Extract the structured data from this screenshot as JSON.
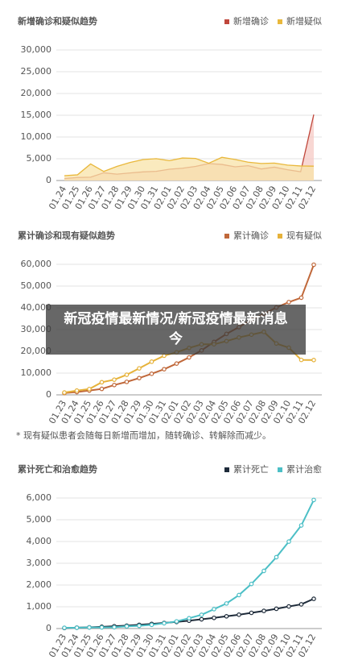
{
  "banner": "新冠疫情最新情况/新冠疫情最新消息今",
  "chart_data": [
    {
      "type": "area",
      "title": "新增确诊和疑似趋势",
      "legend": "top-right",
      "grid": true,
      "categories": [
        "01.24",
        "01.25",
        "01.26",
        "01.27",
        "01.28",
        "01.29",
        "01.30",
        "01.31",
        "02.01",
        "02.02",
        "02.03",
        "02.04",
        "02.05",
        "02.06",
        "02.07",
        "02.08",
        "02.09",
        "02.10",
        "02.11",
        "02.12"
      ],
      "series": [
        {
          "name": "新增确诊",
          "color": "#c0473c",
          "fill": "#f6c9c4",
          "values": [
            444,
            688,
            769,
            1771,
            1459,
            1737,
            1982,
            2102,
            2590,
            2829,
            3235,
            3887,
            3694,
            3143,
            3399,
            2656,
            3062,
            2478,
            2015,
            15152
          ]
        },
        {
          "name": "新增疑似",
          "color": "#e9b83c",
          "fill": "#f8e3a8",
          "values": [
            1118,
            1309,
            3806,
            2077,
            3248,
            4148,
            4812,
            5019,
            4562,
            5173,
            5072,
            3971,
            5328,
            4833,
            4214,
            3916,
            4008,
            3536,
            3342,
            3300
          ]
        }
      ],
      "ylim": [
        0,
        30000
      ],
      "yticks": [
        0,
        {
          "value": 5000,
          "label": "5,000"
        },
        {
          "value": 10000,
          "label": "10,000"
        },
        {
          "value": 15000,
          "label": "15,000"
        },
        {
          "value": 20000,
          "label": "20,000"
        },
        {
          "value": 25000,
          "label": "25,000"
        },
        {
          "value": 30000,
          "label": "30,000"
        }
      ]
    },
    {
      "type": "line",
      "title": "累计确诊和现有疑似趋势",
      "legend": "top-right",
      "grid": true,
      "annotation": "* 现有疑似患者会随每日新增而增加，随转确诊、转解除而减少。",
      "categories": [
        "01.23",
        "01.24",
        "01.25",
        "01.26",
        "01.27",
        "01.28",
        "01.29",
        "01.30",
        "01.31",
        "02.01",
        "02.02",
        "02.03",
        "02.04",
        "02.05",
        "02.06",
        "02.07",
        "02.08",
        "02.09",
        "02.10",
        "02.11",
        "02.12"
      ],
      "series": [
        {
          "name": "累计确诊",
          "color": "#c0683a",
          "values": [
            830,
            1287,
            1975,
            2744,
            4515,
            5974,
            7711,
            9692,
            11791,
            14380,
            17205,
            20438,
            24324,
            28018,
            31161,
            34546,
            37198,
            40171,
            42638,
            44653,
            59804
          ]
        },
        {
          "name": "现有疑似",
          "color": "#e6b23a",
          "values": [
            1072,
            1965,
            2684,
            5794,
            6973,
            9239,
            12167,
            15238,
            17988,
            19544,
            21558,
            23214,
            23260,
            24702,
            26359,
            27657,
            28942,
            23589,
            21675,
            16067,
            16000
          ]
        }
      ],
      "ylim": [
        0,
        60000
      ],
      "yticks": [
        0,
        {
          "value": 10000,
          "label": "10,000"
        },
        {
          "value": 20000,
          "label": "20,000"
        },
        {
          "value": 30000,
          "label": "30,000"
        },
        {
          "value": 40000,
          "label": "40,000"
        },
        {
          "value": 50000,
          "label": "50,000"
        },
        {
          "value": 60000,
          "label": "60,000"
        }
      ]
    },
    {
      "type": "line",
      "title": "累计死亡和治愈趋势",
      "legend": "top-right",
      "grid": true,
      "categories": [
        "01.23",
        "01.24",
        "01.25",
        "01.26",
        "01.27",
        "01.28",
        "01.29",
        "01.30",
        "01.31",
        "02.01",
        "02.02",
        "02.03",
        "02.04",
        "02.05",
        "02.06",
        "02.07",
        "02.08",
        "02.09",
        "02.10",
        "02.11",
        "02.12"
      ],
      "series": [
        {
          "name": "累计死亡",
          "color": "#1e2b3a",
          "values": [
            25,
            41,
            56,
            80,
            106,
            132,
            170,
            213,
            259,
            304,
            361,
            425,
            490,
            563,
            636,
            722,
            811,
            908,
            1016,
            1113,
            1367
          ]
        },
        {
          "name": "累计治愈",
          "color": "#4cbfc6",
          "values": [
            34,
            38,
            49,
            51,
            60,
            103,
            124,
            171,
            243,
            328,
            475,
            632,
            892,
            1153,
            1540,
            2050,
            2649,
            3281,
            3996,
            4740,
            5911
          ]
        }
      ],
      "ylim": [
        0,
        6000
      ],
      "yticks": [
        0,
        {
          "value": 1000,
          "label": "1,000"
        },
        {
          "value": 2000,
          "label": "2,000"
        },
        {
          "value": 3000,
          "label": "3,000"
        },
        {
          "value": 4000,
          "label": "4,000"
        },
        {
          "value": 5000,
          "label": "5,000"
        },
        {
          "value": 6000,
          "label": "6,000"
        }
      ]
    }
  ]
}
